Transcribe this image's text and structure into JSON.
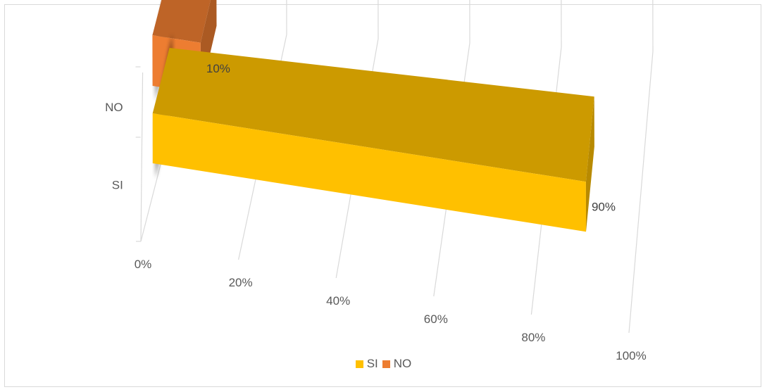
{
  "chart_data": {
    "type": "bar",
    "orientation": "horizontal",
    "style": "3d",
    "categories": [
      "NO",
      "SI"
    ],
    "values": [
      0.1,
      0.9
    ],
    "data_labels": [
      "10%",
      "90%"
    ],
    "xlim": [
      0,
      1
    ],
    "x_ticks": [
      "0%",
      "20%",
      "40%",
      "60%",
      "80%",
      "100%"
    ],
    "grid": true,
    "legend_position": "bottom",
    "legend": [
      {
        "label": "SI",
        "color": "#ffc000"
      },
      {
        "label": "NO",
        "color": "#ed7d31"
      }
    ],
    "colors": {
      "SI": "#ffc000",
      "NO": "#ed7d31"
    },
    "title": "",
    "xlabel": "",
    "ylabel": ""
  }
}
